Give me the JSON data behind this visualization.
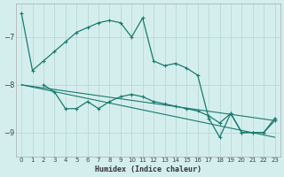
{
  "xlabel": "Humidex (Indice chaleur)",
  "bg_color": "#d4eeee",
  "grid_color": "#b8d8d8",
  "line_color": "#1a7a6e",
  "xlim": [
    -0.5,
    23.5
  ],
  "ylim": [
    -9.5,
    -6.3
  ],
  "yticks": [
    -9,
    -8,
    -7
  ],
  "xticks": [
    0,
    1,
    2,
    3,
    4,
    5,
    6,
    7,
    8,
    9,
    10,
    11,
    12,
    13,
    14,
    15,
    16,
    17,
    18,
    19,
    20,
    21,
    22,
    23
  ],
  "series": [
    {
      "x": [
        0,
        1,
        2,
        3,
        4,
        5,
        6,
        7,
        8,
        9,
        10,
        11,
        12,
        13,
        14,
        15,
        16,
        17,
        18,
        19,
        20,
        21,
        22,
        23
      ],
      "y": [
        -6.5,
        -7.7,
        -7.5,
        -7.3,
        -7.1,
        -6.9,
        -6.8,
        -6.7,
        -6.65,
        -6.7,
        -7.0,
        -6.6,
        -7.5,
        -7.6,
        -7.55,
        -7.65,
        -7.8,
        -8.7,
        -9.1,
        -8.6,
        -9.0,
        -9.0,
        -9.0,
        -8.7
      ]
    },
    {
      "x": [
        2,
        3,
        4,
        5,
        6,
        7,
        8,
        9,
        10,
        11,
        12,
        13,
        14,
        15,
        16,
        17,
        18,
        19,
        20,
        21,
        22,
        23
      ],
      "y": [
        -8.0,
        -8.15,
        -8.5,
        -8.5,
        -8.35,
        -8.5,
        -8.35,
        -8.25,
        -8.2,
        -8.25,
        -8.35,
        -8.4,
        -8.45,
        -8.5,
        -8.55,
        -8.65,
        -8.8,
        -8.6,
        -9.0,
        -9.0,
        -9.0,
        -8.75
      ]
    },
    {
      "x": [
        0,
        23
      ],
      "y": [
        -8.0,
        -9.1
      ]
    },
    {
      "x": [
        0,
        23
      ],
      "y": [
        -8.0,
        -8.75
      ]
    }
  ]
}
